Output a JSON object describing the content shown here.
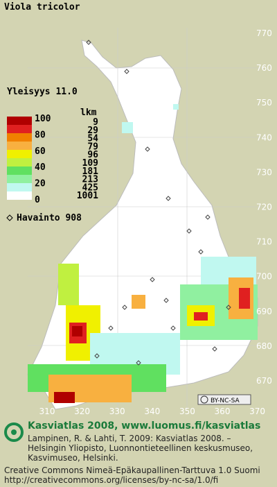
{
  "header": {
    "title": "Viola tricolor",
    "frequency": "Yleisyys  11.0"
  },
  "legend": {
    "percent_labels": [
      "100",
      "80",
      "60",
      "40",
      "20",
      "0"
    ],
    "count_title": "lkm",
    "counts": [
      "9",
      "29",
      "54",
      "79",
      "96",
      "109",
      "181",
      "213",
      "425",
      "1001"
    ],
    "observations": "Havainto  908"
  },
  "grid": {
    "y_labels": [
      "770",
      "760",
      "750",
      "740",
      "730",
      "720",
      "710",
      "700",
      "690",
      "680",
      "670"
    ],
    "x_labels": [
      "310",
      "320",
      "330",
      "340",
      "350",
      "360",
      "370"
    ]
  },
  "license_badge": "BY-NC-SA",
  "footer": {
    "heading": "Kasviatlas 2008, www.luomus.fi/kasviatlas",
    "citation_1": "Lampinen, R. & Lahti, T. 2009: Kasviatlas 2008. –",
    "citation_2": "Helsingin Yliopisto, Luonnontieteellinen keskusmuseo,",
    "citation_3": "Kasvimuseo, Helsinki.",
    "license_1": "Creative Commons Nimeä-Epäkaupallinen-Tarttuva 1.0 Suomi",
    "license_2": "http://creativecommons.org/licenses/by-nc-sa/1.0/fi"
  }
}
